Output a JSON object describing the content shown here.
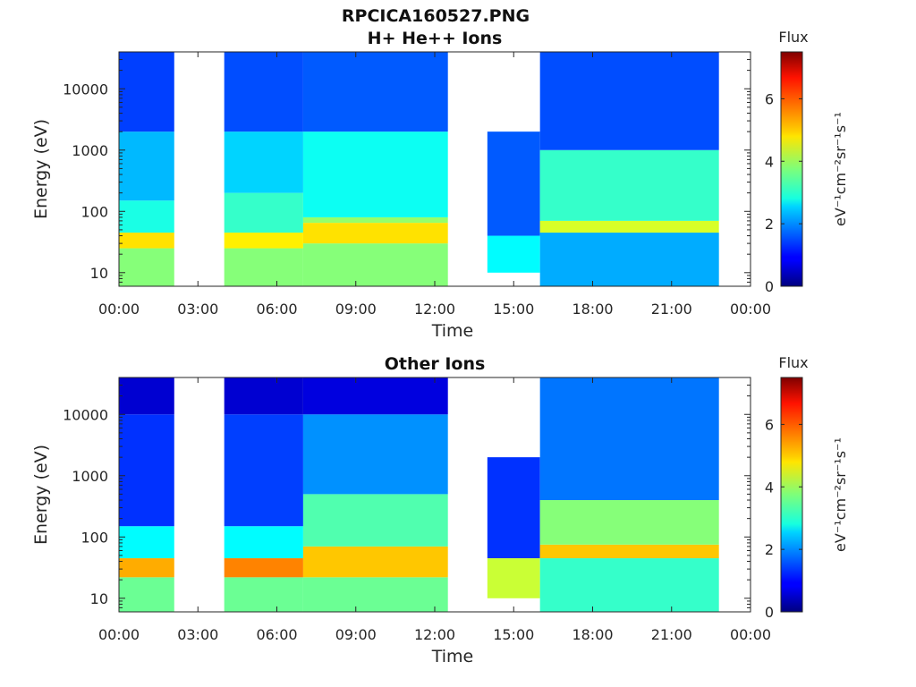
{
  "figure_title": "RPCICA160527.PNG",
  "colorbar_colormap": "jet",
  "chart_data": [
    {
      "type": "heatmap",
      "title": "H+ He++ Ions",
      "xlabel": "Time",
      "ylabel": "Energy (eV)",
      "y_scale": "log",
      "ylim": [
        6,
        40000
      ],
      "xlim": [
        "00:00",
        "24:00"
      ],
      "x_tick_labels": [
        "00:00",
        "03:00",
        "06:00",
        "09:00",
        "12:00",
        "15:00",
        "18:00",
        "21:00",
        "00:00"
      ],
      "y_tick_labels": [
        "10",
        "100",
        "1000",
        "10000"
      ],
      "colorbar": {
        "label": "Flux",
        "unit": "eV⁻¹cm⁻²sr⁻¹s⁻¹",
        "range": [
          0,
          7.5
        ],
        "ticks": [
          "0",
          "2",
          "4",
          "6"
        ]
      },
      "data_gaps_hours": [
        [
          2.1,
          4.0
        ],
        [
          12.5,
          14.0
        ],
        [
          22.8,
          24.0
        ]
      ],
      "flux_bands": [
        {
          "t_start": 0.0,
          "t_end": 2.1,
          "e_low": 6,
          "e_high": 25,
          "flux": 3.8
        },
        {
          "t_start": 0.0,
          "t_end": 2.1,
          "e_low": 25,
          "e_high": 45,
          "flux": 4.9
        },
        {
          "t_start": 0.0,
          "t_end": 2.1,
          "e_low": 45,
          "e_high": 150,
          "flux": 3.0
        },
        {
          "t_start": 0.0,
          "t_end": 2.1,
          "e_low": 150,
          "e_high": 2000,
          "flux": 2.3
        },
        {
          "t_start": 0.0,
          "t_end": 2.1,
          "e_low": 2000,
          "e_high": 40000,
          "flux": 1.4
        },
        {
          "t_start": 4.0,
          "t_end": 7.0,
          "e_low": 6,
          "e_high": 25,
          "flux": 3.8
        },
        {
          "t_start": 4.0,
          "t_end": 7.0,
          "e_low": 25,
          "e_high": 45,
          "flux": 4.8
        },
        {
          "t_start": 4.0,
          "t_end": 7.0,
          "e_low": 45,
          "e_high": 200,
          "flux": 3.2
        },
        {
          "t_start": 4.0,
          "t_end": 7.0,
          "e_low": 200,
          "e_high": 2000,
          "flux": 2.5
        },
        {
          "t_start": 4.0,
          "t_end": 7.0,
          "e_low": 2000,
          "e_high": 40000,
          "flux": 1.5
        },
        {
          "t_start": 7.0,
          "t_end": 12.5,
          "e_low": 6,
          "e_high": 30,
          "flux": 3.8
        },
        {
          "t_start": 7.0,
          "t_end": 12.5,
          "e_low": 30,
          "e_high": 65,
          "flux": 4.9
        },
        {
          "t_start": 7.0,
          "t_end": 12.5,
          "e_low": 65,
          "e_high": 80,
          "flux": 3.9
        },
        {
          "t_start": 7.0,
          "t_end": 12.5,
          "e_low": 80,
          "e_high": 2000,
          "flux": 2.9
        },
        {
          "t_start": 7.0,
          "t_end": 12.5,
          "e_low": 2000,
          "e_high": 40000,
          "flux": 1.6
        },
        {
          "t_start": 14.0,
          "t_end": 16.0,
          "e_low": 10,
          "e_high": 40,
          "flux": 2.8
        },
        {
          "t_start": 14.0,
          "t_end": 16.0,
          "e_low": 40,
          "e_high": 2000,
          "flux": 1.6
        },
        {
          "t_start": 16.0,
          "t_end": 22.8,
          "e_low": 6,
          "e_high": 45,
          "flux": 2.2
        },
        {
          "t_start": 16.0,
          "t_end": 22.8,
          "e_low": 45,
          "e_high": 70,
          "flux": 4.4
        },
        {
          "t_start": 16.0,
          "t_end": 22.8,
          "e_low": 70,
          "e_high": 1000,
          "flux": 3.2
        },
        {
          "t_start": 16.0,
          "t_end": 22.8,
          "e_low": 1000,
          "e_high": 40000,
          "flux": 1.5
        }
      ]
    },
    {
      "type": "heatmap",
      "title": "Other Ions",
      "xlabel": "Time",
      "ylabel": "Energy (eV)",
      "y_scale": "log",
      "ylim": [
        6,
        40000
      ],
      "xlim": [
        "00:00",
        "24:00"
      ],
      "x_tick_labels": [
        "00:00",
        "03:00",
        "06:00",
        "09:00",
        "12:00",
        "15:00",
        "18:00",
        "21:00",
        "00:00"
      ],
      "y_tick_labels": [
        "10",
        "100",
        "1000",
        "10000"
      ],
      "colorbar": {
        "label": "Flux",
        "unit": "eV⁻¹cm⁻²sr⁻¹s⁻¹",
        "range": [
          0,
          7.5
        ],
        "ticks": [
          "0",
          "2",
          "4",
          "6"
        ]
      },
      "data_gaps_hours": [
        [
          2.1,
          4.0
        ],
        [
          12.5,
          14.0
        ],
        [
          22.8,
          24.0
        ]
      ],
      "flux_bands": [
        {
          "t_start": 0.0,
          "t_end": 2.1,
          "e_low": 6,
          "e_high": 22,
          "flux": 3.6
        },
        {
          "t_start": 0.0,
          "t_end": 2.1,
          "e_low": 22,
          "e_high": 45,
          "flux": 5.3
        },
        {
          "t_start": 0.0,
          "t_end": 2.1,
          "e_low": 45,
          "e_high": 150,
          "flux": 2.8
        },
        {
          "t_start": 0.0,
          "t_end": 2.1,
          "e_low": 150,
          "e_high": 10000,
          "flux": 1.3
        },
        {
          "t_start": 0.0,
          "t_end": 2.1,
          "e_low": 10000,
          "e_high": 40000,
          "flux": 0.6
        },
        {
          "t_start": 4.0,
          "t_end": 7.0,
          "e_low": 6,
          "e_high": 22,
          "flux": 3.6
        },
        {
          "t_start": 4.0,
          "t_end": 7.0,
          "e_low": 22,
          "e_high": 45,
          "flux": 5.6
        },
        {
          "t_start": 4.0,
          "t_end": 7.0,
          "e_low": 45,
          "e_high": 150,
          "flux": 2.8
        },
        {
          "t_start": 4.0,
          "t_end": 7.0,
          "e_low": 150,
          "e_high": 10000,
          "flux": 1.4
        },
        {
          "t_start": 4.0,
          "t_end": 7.0,
          "e_low": 10000,
          "e_high": 40000,
          "flux": 0.6
        },
        {
          "t_start": 7.0,
          "t_end": 12.5,
          "e_low": 6,
          "e_high": 22,
          "flux": 3.6
        },
        {
          "t_start": 7.0,
          "t_end": 12.5,
          "e_low": 22,
          "e_high": 70,
          "flux": 5.1
        },
        {
          "t_start": 7.0,
          "t_end": 12.5,
          "e_low": 70,
          "e_high": 500,
          "flux": 3.4
        },
        {
          "t_start": 7.0,
          "t_end": 12.5,
          "e_low": 500,
          "e_high": 10000,
          "flux": 2.0
        },
        {
          "t_start": 7.0,
          "t_end": 12.5,
          "e_low": 10000,
          "e_high": 40000,
          "flux": 0.7
        },
        {
          "t_start": 14.0,
          "t_end": 16.0,
          "e_low": 10,
          "e_high": 45,
          "flux": 4.3
        },
        {
          "t_start": 14.0,
          "t_end": 16.0,
          "e_low": 45,
          "e_high": 2000,
          "flux": 1.3
        },
        {
          "t_start": 16.0,
          "t_end": 22.8,
          "e_low": 6,
          "e_high": 45,
          "flux": 3.2
        },
        {
          "t_start": 16.0,
          "t_end": 22.8,
          "e_low": 45,
          "e_high": 75,
          "flux": 5.1
        },
        {
          "t_start": 16.0,
          "t_end": 22.8,
          "e_low": 75,
          "e_high": 400,
          "flux": 3.8
        },
        {
          "t_start": 16.0,
          "t_end": 22.8,
          "e_low": 400,
          "e_high": 40000,
          "flux": 1.8
        }
      ]
    }
  ]
}
